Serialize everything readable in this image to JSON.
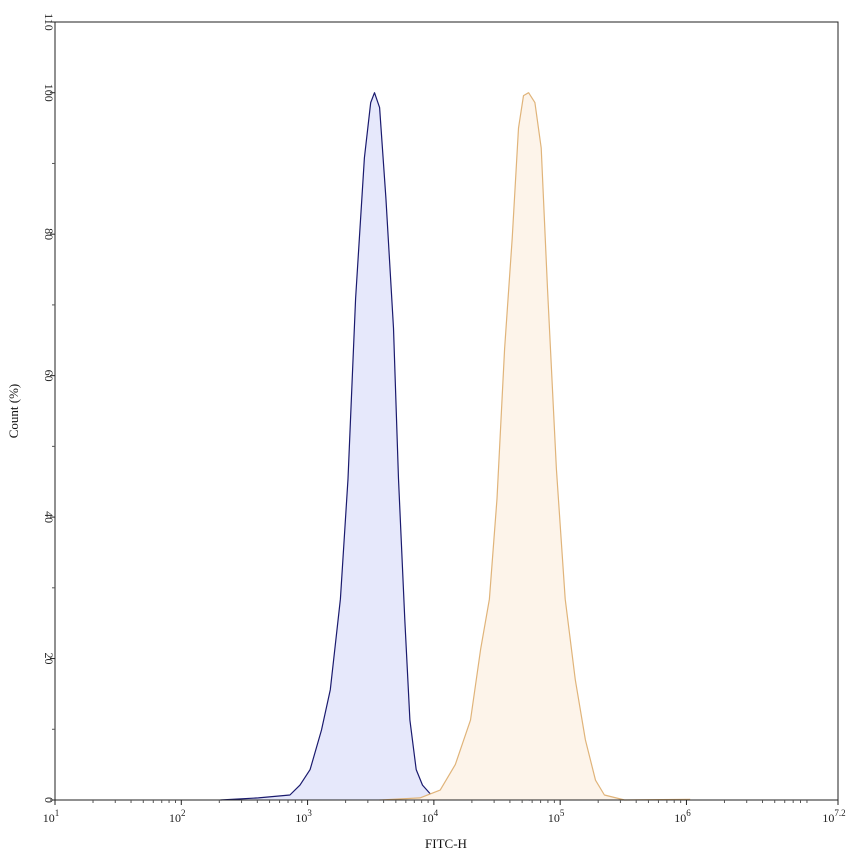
{
  "chart_data": {
    "type": "area",
    "title": "",
    "xlabel": "FITC-H",
    "ylabel": "Count (%)",
    "x_scale": "log10",
    "xlim_log10": [
      1,
      7.2
    ],
    "ylim": [
      0,
      110
    ],
    "x_tick_labels": [
      {
        "base": "10",
        "exp": "1",
        "log10": 1
      },
      {
        "base": "10",
        "exp": "2",
        "log10": 2
      },
      {
        "base": "10",
        "exp": "3",
        "log10": 3
      },
      {
        "base": "10",
        "exp": "4",
        "log10": 4
      },
      {
        "base": "10",
        "exp": "5",
        "log10": 5
      },
      {
        "base": "10",
        "exp": "6",
        "log10": 6
      },
      {
        "base": "10",
        "exp": "7.2",
        "log10": 7.2
      }
    ],
    "y_ticks": [
      0,
      20,
      40,
      60,
      80,
      100,
      110
    ],
    "grid": false,
    "legend": "none",
    "series": [
      {
        "color": "#1a1a6e",
        "fill": "#e6e8fb",
        "log10_x": [
          2.31,
          2.61,
          2.86,
          2.94,
          3.02,
          3.11,
          3.18,
          3.26,
          3.32,
          3.38,
          3.45,
          3.5,
          3.53,
          3.57,
          3.62,
          3.68,
          3.72,
          3.77,
          3.81,
          3.86,
          3.91,
          3.98,
          4.13,
          4.68,
          4.76
        ],
        "y": [
          0,
          0.3,
          0.7,
          2.1,
          4.3,
          9.9,
          15.6,
          28.4,
          45.4,
          70.9,
          90.8,
          98.6,
          100,
          97.9,
          85.1,
          66.7,
          45.4,
          25.5,
          11.3,
          4.3,
          2.1,
          0.7,
          0.3,
          0.1,
          0
        ]
      },
      {
        "color": "#e0b47a",
        "fill": "#fdf4ea",
        "log10_x": [
          3.57,
          3.89,
          4.05,
          4.17,
          4.29,
          4.37,
          4.44,
          4.5,
          4.56,
          4.62,
          4.67,
          4.71,
          4.75,
          4.8,
          4.85,
          4.9,
          4.97,
          5.04,
          5.12,
          5.2,
          5.28,
          5.35,
          5.51,
          6.03
        ],
        "y": [
          0,
          0.3,
          1.4,
          5,
          11.3,
          21.3,
          28.4,
          42.6,
          63.8,
          79.4,
          95,
          99.6,
          100,
          98.6,
          92.2,
          72.3,
          46.8,
          28.4,
          17,
          8.5,
          2.8,
          0.7,
          0,
          0.1
        ]
      }
    ]
  }
}
